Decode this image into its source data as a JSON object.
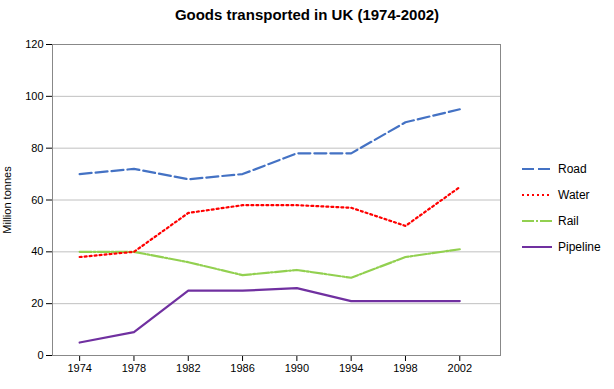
{
  "chart_data": {
    "type": "line",
    "title": "Goods transported in UK (1974-2002)",
    "ylabel": "Million tonnes",
    "x": [
      1974,
      1978,
      1982,
      1986,
      1990,
      1994,
      1998,
      2002
    ],
    "series": [
      {
        "name": "Road",
        "color": "#4472C4",
        "line_style": "dashed",
        "values": [
          70,
          72,
          68,
          70,
          78,
          78,
          90,
          95
        ]
      },
      {
        "name": "Water",
        "color": "#FF0000",
        "line_style": "dotted",
        "values": [
          38,
          40,
          55,
          58,
          58,
          57,
          50,
          65
        ]
      },
      {
        "name": "Rail",
        "color": "#92D050",
        "line_style": "dashdot",
        "values": [
          40,
          40,
          36,
          31,
          33,
          30,
          38,
          41
        ]
      },
      {
        "name": "Pipeline",
        "color": "#7030A0",
        "line_style": "solid",
        "values": [
          5,
          9,
          25,
          25,
          26,
          21,
          21,
          21
        ]
      }
    ],
    "xlim": [
      1972,
      2005
    ],
    "xticks": [
      1974,
      1978,
      1982,
      1986,
      1990,
      1994,
      1998,
      2002
    ],
    "ylim": [
      0,
      120
    ],
    "yticks": [
      0,
      20,
      40,
      60,
      80,
      100,
      120
    ],
    "grid": "y",
    "legend": "right"
  }
}
